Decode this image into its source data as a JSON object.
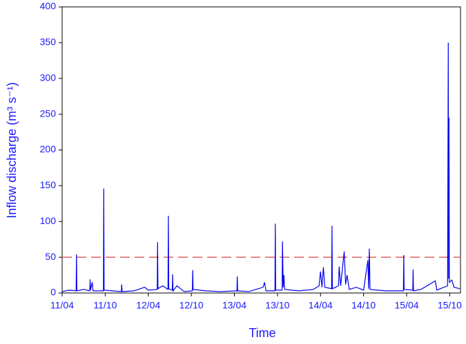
{
  "chart_data": {
    "type": "line",
    "ylabel": "Inflow discharge (m³ s⁻¹)",
    "xlabel": "Time",
    "xlim": [
      0,
      55.5
    ],
    "xticks": [
      {
        "value": 0,
        "label": "11/04"
      },
      {
        "value": 6,
        "label": "11/10"
      },
      {
        "value": 12,
        "label": "12/04"
      },
      {
        "value": 18,
        "label": "12/10"
      },
      {
        "value": 24,
        "label": "13/04"
      },
      {
        "value": 30,
        "label": "13/10"
      },
      {
        "value": 36,
        "label": "14/04"
      },
      {
        "value": 42,
        "label": "14/10"
      },
      {
        "value": 48,
        "label": "15/04"
      },
      {
        "value": 54,
        "label": "15/10"
      }
    ],
    "ylim": [
      0,
      400
    ],
    "yticks": [
      0,
      50,
      100,
      150,
      200,
      250,
      300,
      350,
      400
    ],
    "axis_color": "#1a1aff",
    "reference_line": {
      "value": 50,
      "color": "#e06060"
    },
    "series": [
      {
        "color": "#0000ee",
        "x": [
          0,
          1,
          1.95,
          2.0,
          2.05,
          3,
          3.85,
          3.9,
          3.95,
          4.2,
          4.3,
          5.75,
          5.8,
          5.85,
          7,
          8.25,
          8.3,
          8.35,
          10,
          11.5,
          12,
          13.25,
          13.3,
          13.35,
          14,
          14.75,
          14.8,
          14.85,
          15.35,
          15.4,
          15.45,
          16,
          17,
          18.15,
          18.2,
          18.25,
          20,
          22,
          24.35,
          24.4,
          24.45,
          26,
          28,
          28.2,
          28.4,
          29.65,
          29.7,
          29.75,
          30.65,
          30.7,
          30.8,
          30.9,
          31.0,
          33,
          35,
          35.8,
          36,
          36.2,
          36.4,
          36.6,
          37.55,
          37.6,
          37.65,
          38.5,
          38.6,
          38.8,
          39.3,
          39.5,
          39.7,
          40,
          41,
          42,
          42.6,
          42.7,
          42.8,
          42.9,
          45,
          47.55,
          47.6,
          47.65,
          48.85,
          48.9,
          48.95,
          50,
          52,
          52.2,
          53.7,
          53.8,
          53.85,
          53.9,
          53.95,
          54.3,
          54.6,
          55.4
        ],
        "values": [
          2,
          4,
          3,
          54,
          3,
          5,
          3,
          19,
          4,
          15,
          3,
          3,
          146,
          4,
          3,
          2,
          12,
          2,
          3,
          8,
          4,
          5,
          71,
          6,
          10,
          5,
          108,
          6,
          4,
          26,
          3,
          10,
          2,
          3,
          32,
          5,
          3,
          2,
          3,
          23,
          3,
          2,
          8,
          15,
          3,
          3,
          97,
          4,
          4,
          72,
          8,
          25,
          5,
          3,
          5,
          10,
          30,
          8,
          36,
          8,
          6,
          94,
          6,
          10,
          37,
          10,
          58,
          12,
          25,
          5,
          8,
          4,
          46,
          6,
          62,
          5,
          3,
          3,
          53,
          5,
          4,
          33,
          3,
          5,
          17,
          4,
          10,
          350,
          20,
          245,
          15,
          18,
          8,
          6
        ]
      }
    ]
  }
}
